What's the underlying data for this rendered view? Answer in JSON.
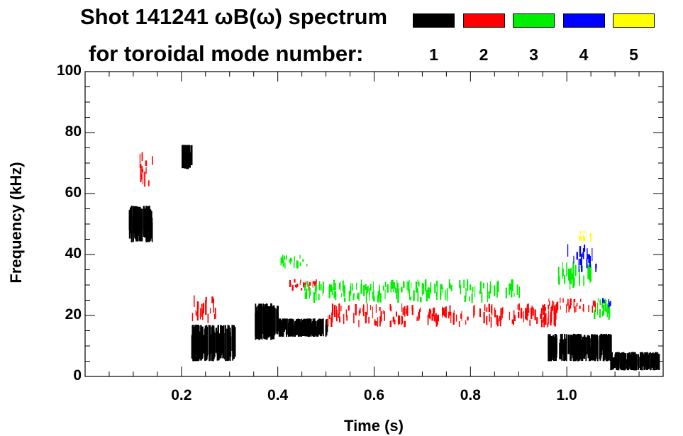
{
  "title_line1": "Shot 141241 ωB(ω) spectrum",
  "title_line2": "for toroidal mode number:",
  "legend": [
    {
      "label": "1",
      "color": "#000000"
    },
    {
      "label": "2",
      "color": "#ff0000"
    },
    {
      "label": "3",
      "color": "#00ee00"
    },
    {
      "label": "4",
      "color": "#0000ff"
    },
    {
      "label": "5",
      "color": "#ffff00"
    }
  ],
  "chart_data": {
    "type": "heatmap",
    "title": "Shot 141241 ωB(ω) spectrum",
    "xlabel": "Time (s)",
    "ylabel": "Frequency (kHz)",
    "xlim": [
      0.0,
      1.2
    ],
    "ylim": [
      0,
      100
    ],
    "xticks": [
      0.2,
      0.4,
      0.6,
      0.8,
      1.0
    ],
    "xtick_labels": [
      "0.2",
      "0.4",
      "0.6",
      "0.8",
      "1.0"
    ],
    "yticks": [
      0,
      20,
      40,
      60,
      80,
      100
    ],
    "ytick_labels": [
      "0",
      "20",
      "40",
      "60",
      "80",
      "100"
    ],
    "grid": false,
    "legend_placement": "top-right",
    "series": [
      {
        "name": "1",
        "features": [
          {
            "t": [
              0.09,
              0.14
            ],
            "f": [
              44,
              56
            ]
          },
          {
            "t": [
              0.2,
              0.22
            ],
            "f": [
              68,
              76
            ]
          },
          {
            "t": [
              0.22,
              0.31
            ],
            "f": [
              5,
              17
            ]
          },
          {
            "t": [
              0.35,
              0.4
            ],
            "f": [
              12,
              24
            ]
          },
          {
            "t": [
              0.4,
              0.5
            ],
            "f": [
              13,
              19
            ]
          },
          {
            "t": [
              0.96,
              1.09
            ],
            "f": [
              5,
              14
            ]
          },
          {
            "t": [
              1.09,
              1.19
            ],
            "f": [
              2,
              8
            ]
          }
        ]
      },
      {
        "name": "2",
        "features": [
          {
            "t": [
              0.11,
              0.14
            ],
            "f": [
              62,
              74
            ]
          },
          {
            "t": [
              0.22,
              0.27
            ],
            "f": [
              17,
              27
            ]
          },
          {
            "t": [
              0.42,
              0.48
            ],
            "f": [
              28,
              32
            ]
          },
          {
            "t": [
              0.5,
              0.98
            ],
            "f": [
              16,
              24
            ]
          },
          {
            "t": [
              0.96,
              1.06
            ],
            "f": [
              20,
              26
            ]
          }
        ]
      },
      {
        "name": "3",
        "features": [
          {
            "t": [
              0.4,
              0.46
            ],
            "f": [
              35,
              40
            ]
          },
          {
            "t": [
              0.45,
              0.9
            ],
            "f": [
              24,
              32
            ]
          },
          {
            "t": [
              0.98,
              1.05
            ],
            "f": [
              28,
              40
            ]
          },
          {
            "t": [
              1.05,
              1.09
            ],
            "f": [
              18,
              26
            ]
          }
        ]
      },
      {
        "name": "4",
        "features": [
          {
            "t": [
              1.0,
              1.06
            ],
            "f": [
              34,
              44
            ]
          },
          {
            "t": [
              1.07,
              1.09
            ],
            "f": [
              22,
              26
            ]
          }
        ]
      },
      {
        "name": "5",
        "features": [
          {
            "t": [
              1.02,
              1.05
            ],
            "f": [
              44,
              48
            ]
          }
        ]
      }
    ]
  }
}
